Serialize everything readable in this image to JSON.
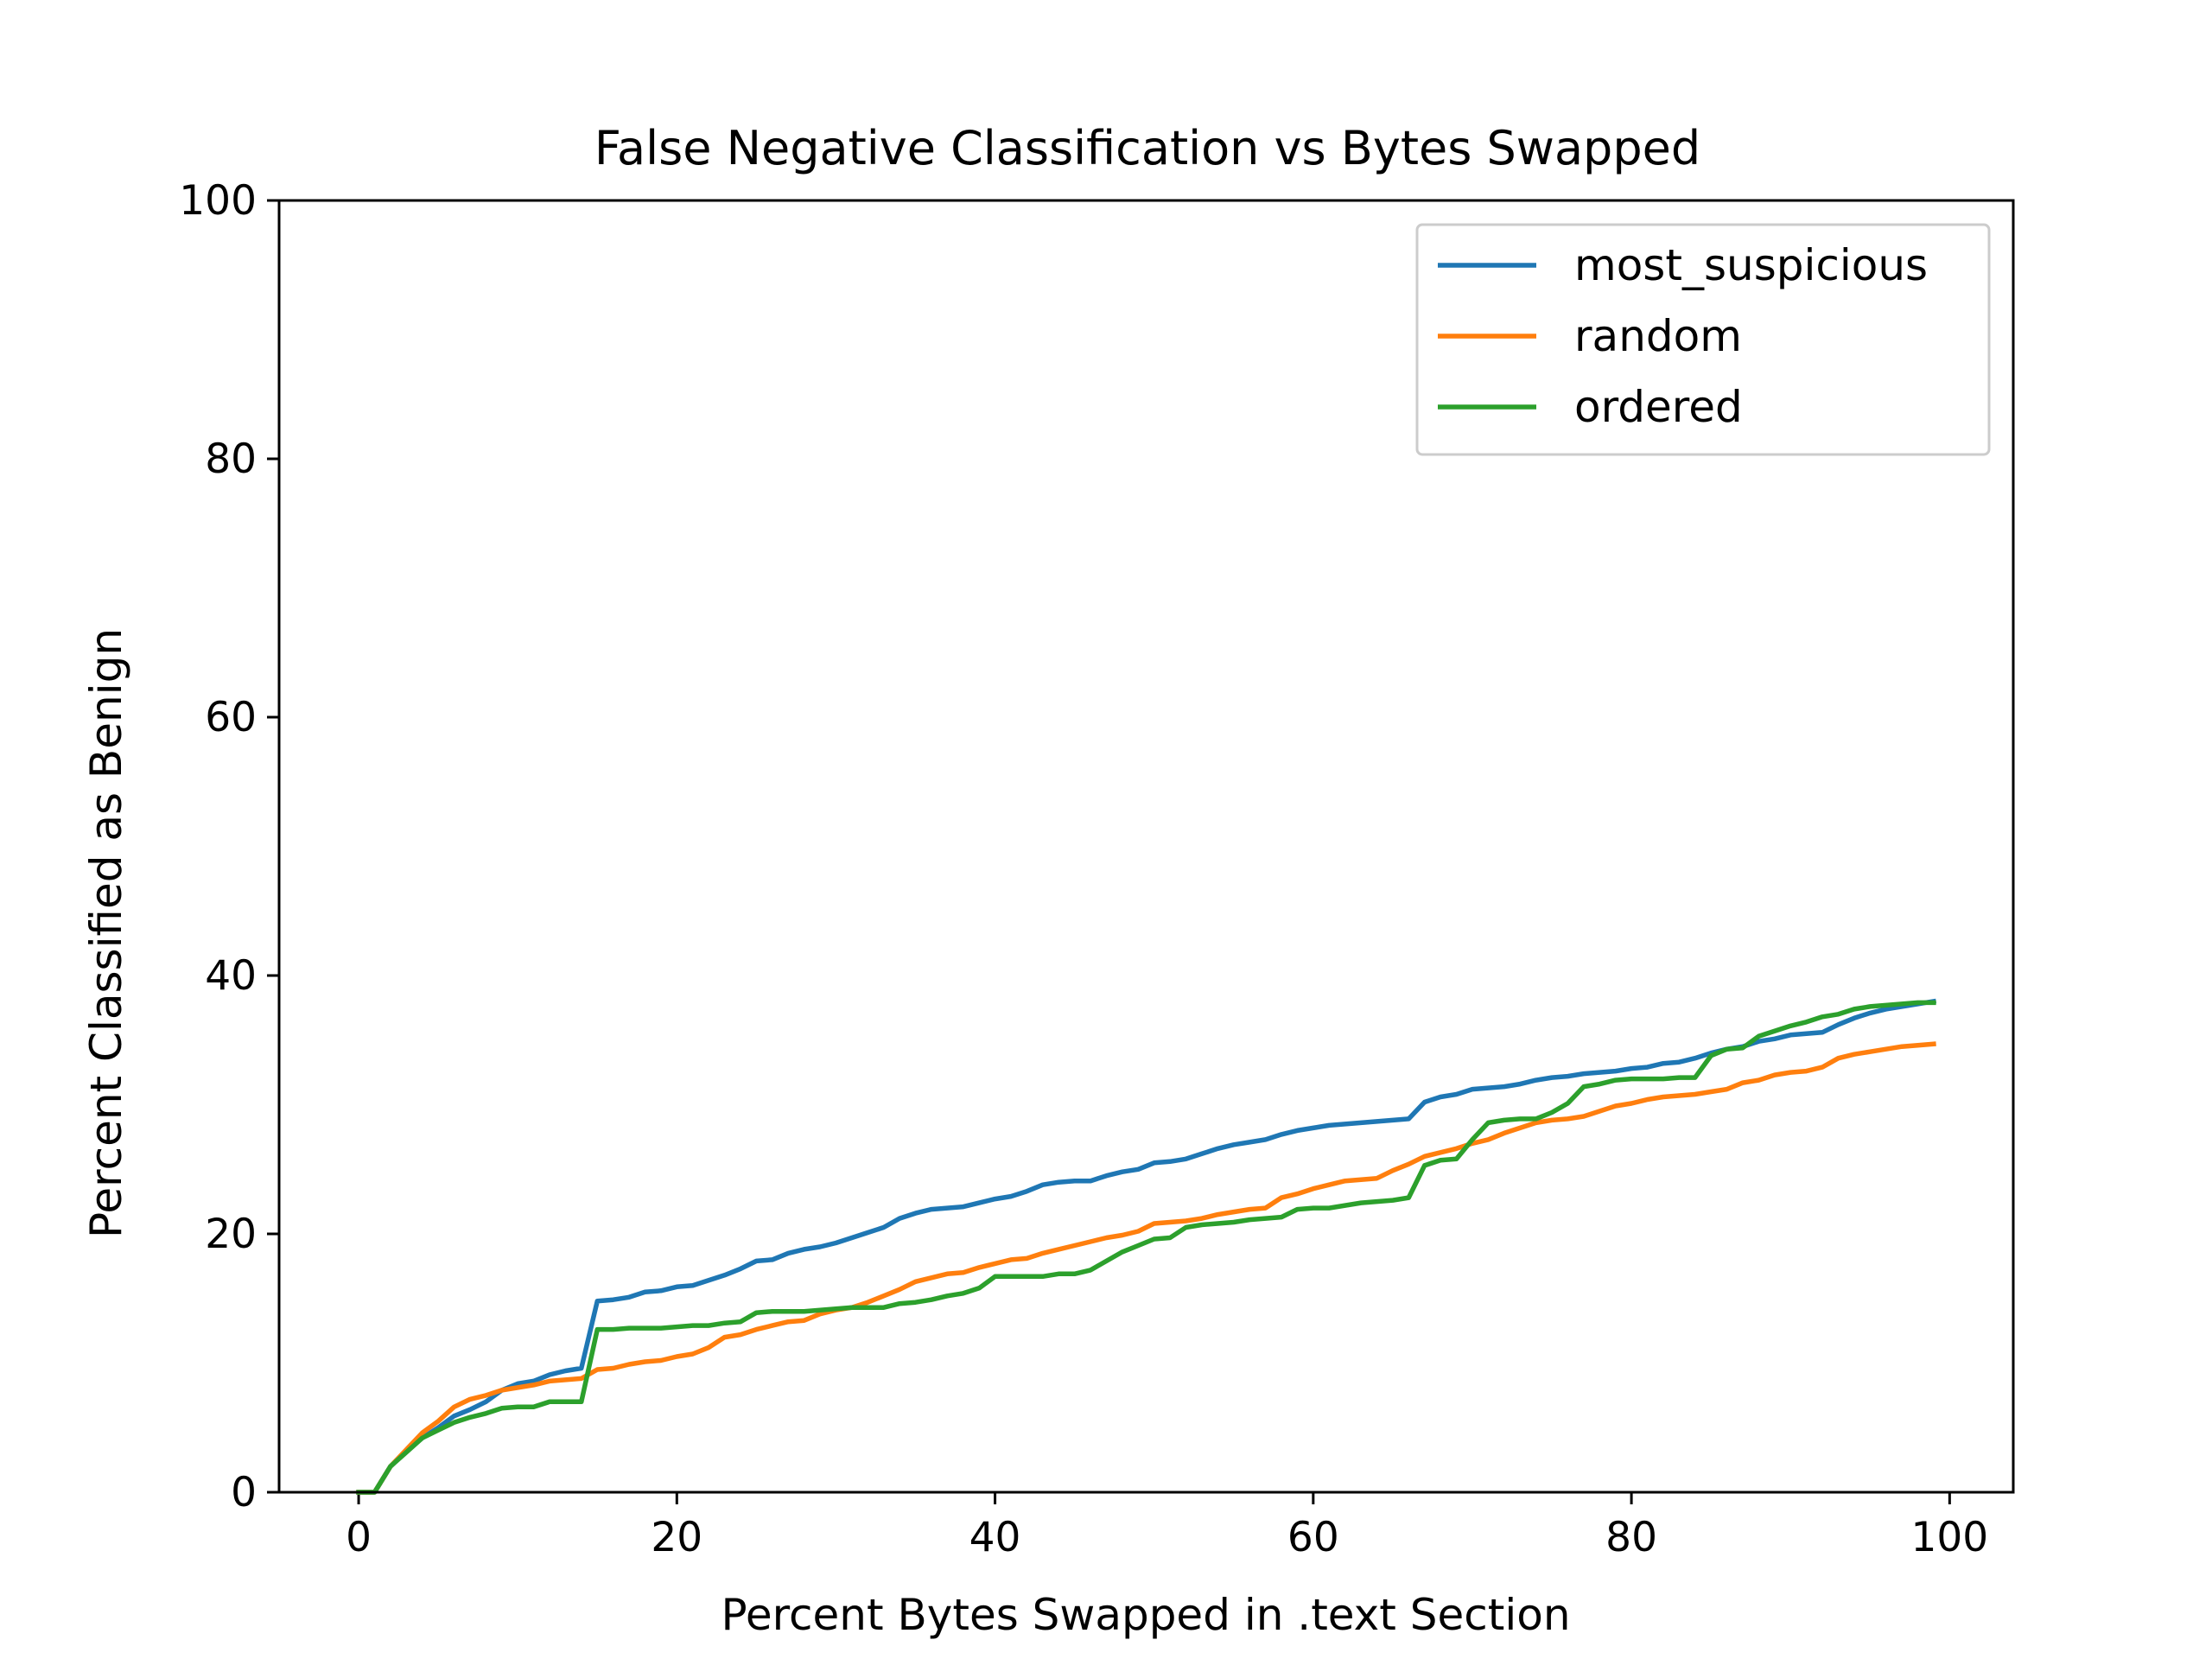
{
  "chart_data": {
    "type": "line",
    "title": "False Negative Classification vs Bytes Swapped",
    "xlabel": "Percent Bytes Swapped in .text Section",
    "ylabel": "Percent Classified as Benign",
    "xlim": [
      -5,
      104
    ],
    "ylim": [
      0,
      100
    ],
    "xticks": [
      0,
      20,
      40,
      60,
      80,
      100
    ],
    "yticks": [
      0,
      20,
      40,
      60,
      80,
      100
    ],
    "grid": false,
    "legend_position": "top-right",
    "x": [
      0,
      1,
      2,
      3,
      4,
      5,
      6,
      7,
      8,
      9,
      10,
      11,
      12,
      13,
      14,
      15,
      16,
      17,
      18,
      19,
      20,
      21,
      22,
      23,
      24,
      25,
      26,
      27,
      28,
      29,
      30,
      31,
      32,
      33,
      34,
      35,
      36,
      37,
      38,
      39,
      40,
      41,
      42,
      43,
      44,
      45,
      46,
      47,
      48,
      49,
      50,
      51,
      52,
      53,
      54,
      55,
      56,
      57,
      58,
      59,
      60,
      61,
      62,
      63,
      64,
      65,
      66,
      67,
      68,
      69,
      70,
      71,
      72,
      73,
      74,
      75,
      76,
      77,
      78,
      79,
      80,
      81,
      82,
      83,
      84,
      85,
      86,
      87,
      88,
      89,
      90,
      91,
      92,
      93,
      94,
      95,
      96,
      97,
      98,
      99
    ],
    "series": [
      {
        "name": "most_suspicious",
        "color": "#1f77b4",
        "values": [
          0,
          0,
          2.0,
          3.2,
          4.2,
          5.0,
          5.9,
          6.4,
          7.0,
          7.9,
          8.4,
          8.6,
          9.1,
          9.4,
          9.6,
          14.8,
          14.9,
          15.1,
          15.5,
          15.6,
          15.9,
          16.0,
          16.4,
          16.8,
          17.3,
          17.9,
          18.0,
          18.5,
          18.8,
          19.0,
          19.3,
          19.7,
          20.1,
          20.5,
          21.2,
          21.6,
          21.9,
          22.0,
          22.1,
          22.4,
          22.7,
          22.9,
          23.3,
          23.8,
          24.0,
          24.1,
          24.1,
          24.5,
          24.8,
          25.0,
          25.5,
          25.6,
          25.8,
          26.2,
          26.6,
          26.9,
          27.1,
          27.3,
          27.7,
          28.0,
          28.2,
          28.4,
          28.5,
          28.6,
          28.7,
          28.8,
          28.9,
          30.2,
          30.6,
          30.8,
          31.2,
          31.3,
          31.4,
          31.6,
          31.9,
          32.1,
          32.2,
          32.4,
          32.5,
          32.6,
          32.8,
          32.9,
          33.2,
          33.3,
          33.6,
          34.0,
          34.3,
          34.5,
          34.9,
          35.1,
          35.4,
          35.5,
          35.6,
          36.2,
          36.7,
          37.1,
          37.4,
          37.6,
          37.8,
          38.0
        ]
      },
      {
        "name": "random",
        "color": "#ff7f0e",
        "values": [
          0,
          0,
          2.0,
          3.3,
          4.6,
          5.5,
          6.6,
          7.2,
          7.5,
          7.9,
          8.1,
          8.3,
          8.6,
          8.7,
          8.8,
          9.5,
          9.6,
          9.9,
          10.1,
          10.2,
          10.5,
          10.7,
          11.2,
          12.0,
          12.2,
          12.6,
          12.9,
          13.2,
          13.3,
          13.8,
          14.1,
          14.3,
          14.7,
          15.2,
          15.7,
          16.3,
          16.6,
          16.9,
          17.0,
          17.4,
          17.7,
          18.0,
          18.1,
          18.5,
          18.8,
          19.1,
          19.4,
          19.7,
          19.9,
          20.2,
          20.8,
          20.9,
          21.0,
          21.2,
          21.5,
          21.7,
          21.9,
          22.0,
          22.8,
          23.1,
          23.5,
          23.8,
          24.1,
          24.2,
          24.3,
          24.9,
          25.4,
          26.0,
          26.3,
          26.6,
          27.0,
          27.3,
          27.8,
          28.2,
          28.6,
          28.8,
          28.9,
          29.1,
          29.5,
          29.9,
          30.1,
          30.4,
          30.6,
          30.7,
          30.8,
          31.0,
          31.2,
          31.7,
          31.9,
          32.3,
          32.5,
          32.6,
          32.9,
          33.6,
          33.9,
          34.1,
          34.3,
          34.5,
          34.6,
          34.7
        ]
      },
      {
        "name": "ordered",
        "color": "#2ca02c",
        "values": [
          0,
          0,
          2.0,
          3.1,
          4.2,
          4.8,
          5.4,
          5.8,
          6.1,
          6.5,
          6.6,
          6.6,
          7.0,
          7.0,
          7.0,
          12.6,
          12.6,
          12.7,
          12.7,
          12.7,
          12.8,
          12.9,
          12.9,
          13.1,
          13.2,
          13.9,
          14.0,
          14.0,
          14.0,
          14.1,
          14.2,
          14.3,
          14.3,
          14.3,
          14.6,
          14.7,
          14.9,
          15.2,
          15.4,
          15.8,
          16.7,
          16.7,
          16.7,
          16.7,
          16.9,
          16.9,
          17.2,
          17.9,
          18.6,
          19.1,
          19.6,
          19.7,
          20.5,
          20.7,
          20.8,
          20.9,
          21.1,
          21.2,
          21.3,
          21.9,
          22.0,
          22.0,
          22.2,
          22.4,
          22.5,
          22.6,
          22.8,
          25.3,
          25.7,
          25.8,
          27.3,
          28.6,
          28.8,
          28.9,
          28.9,
          29.4,
          30.1,
          31.4,
          31.6,
          31.9,
          32.0,
          32.0,
          32.0,
          32.1,
          32.1,
          33.8,
          34.3,
          34.4,
          35.3,
          35.7,
          36.1,
          36.4,
          36.8,
          37.0,
          37.4,
          37.6,
          37.7,
          37.8,
          37.9,
          37.9
        ]
      }
    ]
  }
}
